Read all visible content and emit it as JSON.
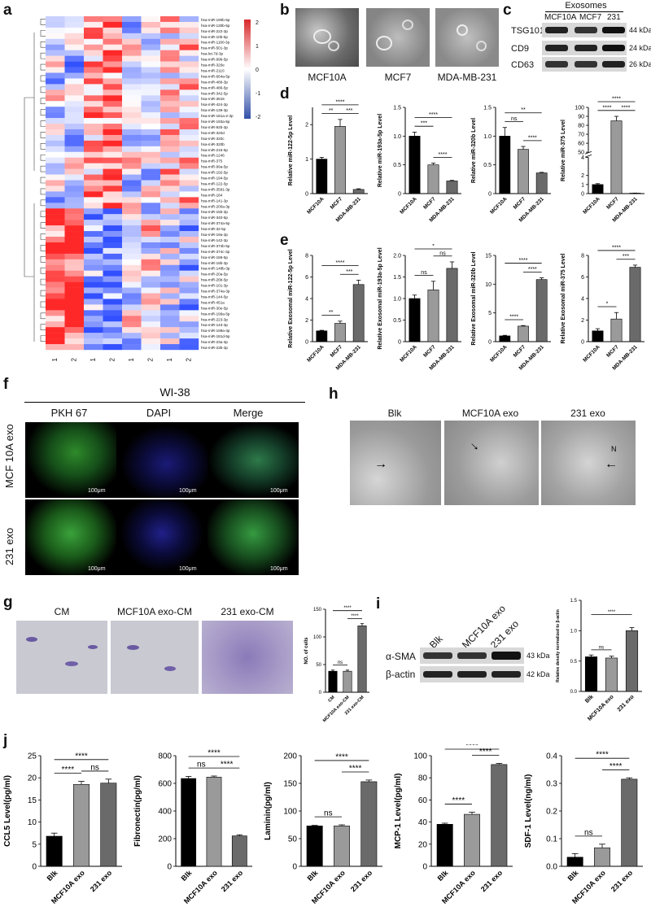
{
  "panels": {
    "a": "a",
    "b": "b",
    "c": "c",
    "d": "d",
    "e": "e",
    "f": "f",
    "g": "g",
    "h": "h",
    "i": "i",
    "j": "j"
  },
  "heatmap": {
    "samples": [
      "NM1",
      "NM2",
      "BM1",
      "BM2",
      "LR1",
      "LR2",
      "LG1",
      "LG2"
    ],
    "genes": [
      "hsa-miR-190b-5p",
      "hsa-miR-130b-5p",
      "hsa-miR-222-3p",
      "hsa-miR-10b-5p",
      "hsa-miR-1180-3p",
      "hsa-miR-501-3p",
      "hsa-let-7d-3p",
      "hsa-miR-99b-5p",
      "hsa-miR-320e",
      "hsa-miR-2110",
      "hsa-miR-664a-5p",
      "hsa-miR-486-3p",
      "hsa-miR-486-5p",
      "hsa-miR-342-5p",
      "hsa-miR-3615",
      "hsa-miR-424-3p",
      "hsa-miR-139-3p",
      "hsa-miR-181a-2-3p",
      "hsa-miR-193a-5p",
      "hsa-miR-92b-3p",
      "hsa-miR-320d",
      "hsa-miR-320c",
      "hsa-miR-320b",
      "hsa-miR-215-5p",
      "hsa-miR-1246",
      "hsa-miR-375",
      "hsa-miR-99a-5p",
      "hsa-miR-192-5p",
      "hsa-miR-194-5p",
      "hsa-miR-122-5p",
      "hsa-miR-3591-3p",
      "hsa-miR-184",
      "hsa-miR-141-3p",
      "hsa-miR-200a-3p",
      "hsa-miR-15b-3p",
      "hsa-miR-340-5p",
      "hsa-miR-374a-5p",
      "hsa-miR-32-5p",
      "hsa-miR-19a-3p",
      "hsa-miR-142-3p",
      "hsa-miR-374b-5p",
      "hsa-miR-374c-3p",
      "hsa-miR-186-5p",
      "hsa-miR-19b-3p",
      "hsa-miR-148b-3p",
      "hsa-miR-20a-5p",
      "hsa-miR-26b-5p",
      "hsa-miR-101-3p",
      "hsa-miR-374a-3p",
      "hsa-miR-144-5p",
      "hsa-miR-451a",
      "hsa-miR-30e-5p",
      "hsa-miR-199a-5p",
      "hsa-miR-223-3p",
      "hsa-miR-143-3p",
      "hsa-miR-199a-3p",
      "hsa-miR-181d-5p",
      "hsa-miR-23a-3p",
      "hsa-miR-23b-3p"
    ],
    "scale": [
      "2",
      "1",
      "0",
      "-1",
      "-2"
    ]
  },
  "panel_b": {
    "labels": [
      "MCF10A",
      "MCF7",
      "MDA-MB-231"
    ]
  },
  "panel_c": {
    "header": "Exosomes",
    "lanes": [
      "MCF10A",
      "MCF7",
      "231"
    ],
    "proteins": [
      "TSG101",
      "CD9",
      "CD63"
    ],
    "sizes": [
      "44 kDa",
      "24 kDa",
      "26 kDa"
    ]
  },
  "panel_f": {
    "cell_line": "WI-38",
    "columns": [
      "PKH 67",
      "DAPI",
      "Merge"
    ],
    "rows": [
      "MCF 10A exo",
      "231 exo"
    ],
    "scale_bar": "100μm"
  },
  "panel_g": {
    "columns": [
      "CM",
      "MCF10A exo-CM",
      "231 exo-CM"
    ]
  },
  "panel_h": {
    "columns": [
      "Blk",
      "MCF10A exo",
      "231 exo"
    ],
    "marker": "N"
  },
  "panel_i": {
    "lanes": [
      "Blk",
      "MCF10A exo",
      "231 exo"
    ],
    "proteins": [
      "α-SMA",
      "β-actin"
    ],
    "sizes": [
      "43 kDa",
      "42 kDa"
    ]
  },
  "chart_data": [
    {
      "id": "d1",
      "type": "bar",
      "categories": [
        "MCF10A",
        "MCF7",
        "MDA-MB-231"
      ],
      "values": [
        1.0,
        1.95,
        0.12
      ],
      "errors": [
        0.05,
        0.2,
        0.02
      ],
      "ylabel": "Relative miR-122-5p Level",
      "ylim": [
        0,
        2.5
      ],
      "yticks": [
        "0",
        "1",
        "2"
      ],
      "sig": [
        {
          "a": 0,
          "b": 1,
          "t": "**"
        },
        {
          "a": 1,
          "b": 2,
          "t": "***"
        },
        {
          "a": 0,
          "b": 2,
          "t": "****"
        }
      ]
    },
    {
      "id": "d2",
      "type": "bar",
      "categories": [
        "MCF10A",
        "MCF7",
        "MDA-MB-231"
      ],
      "values": [
        1.0,
        0.5,
        0.22
      ],
      "errors": [
        0.07,
        0.03,
        0.01
      ],
      "ylabel": "Relative miR-193a-5p Level",
      "ylim": [
        0,
        1.5
      ],
      "yticks": [
        "0",
        "0.5",
        "1.0",
        "1.5"
      ],
      "sig": [
        {
          "a": 0,
          "b": 1,
          "t": "***"
        },
        {
          "a": 1,
          "b": 2,
          "t": "****"
        },
        {
          "a": 0,
          "b": 2,
          "t": "****"
        }
      ]
    },
    {
      "id": "d3",
      "type": "bar",
      "categories": [
        "MCF10A",
        "MCF7",
        "MDA-MB-231"
      ],
      "values": [
        1.0,
        0.77,
        0.36
      ],
      "errors": [
        0.15,
        0.05,
        0.01
      ],
      "ylabel": "Relative miR-320b Level",
      "ylim": [
        0,
        1.5
      ],
      "yticks": [
        "0",
        "0.5",
        "1.0",
        "1.5"
      ],
      "sig": [
        {
          "a": 0,
          "b": 1,
          "t": "ns"
        },
        {
          "a": 1,
          "b": 2,
          "t": "****"
        },
        {
          "a": 0,
          "b": 2,
          "t": "**"
        }
      ]
    },
    {
      "id": "d4",
      "type": "bar",
      "categories": [
        "MCF10A",
        "MCF7",
        "MDA-MB-231"
      ],
      "values": [
        1.0,
        85,
        0.05
      ],
      "errors": [
        0.1,
        5,
        0.01
      ],
      "ylabel": "Relative miR-375 Level",
      "ylim": [
        0,
        100
      ],
      "yticks": [
        "0",
        "1",
        "2",
        "4",
        "50",
        "60",
        "70",
        "80",
        "90",
        "100"
      ],
      "broken_axis": true,
      "sig": [
        {
          "a": 0,
          "b": 1,
          "t": "****"
        },
        {
          "a": 1,
          "b": 2,
          "t": "****"
        },
        {
          "a": 0,
          "b": 2,
          "t": "****"
        }
      ]
    },
    {
      "id": "e1",
      "type": "bar",
      "categories": [
        "MCF10A",
        "MCF7",
        "MDA-MB-231"
      ],
      "values": [
        1.0,
        1.7,
        5.3
      ],
      "errors": [
        0.05,
        0.2,
        0.4
      ],
      "ylabel": "Relative Exosomal miR-122-5p Level",
      "ylim": [
        0,
        8
      ],
      "yticks": [
        "0",
        "2",
        "4",
        "6",
        "8"
      ],
      "sig": [
        {
          "a": 0,
          "b": 1,
          "t": "**"
        },
        {
          "a": 1,
          "b": 2,
          "t": "***"
        },
        {
          "a": 0,
          "b": 2,
          "t": "****"
        }
      ]
    },
    {
      "id": "e2",
      "type": "bar",
      "categories": [
        "MCF10A",
        "MCF7",
        "MDA-MB-231"
      ],
      "values": [
        1.0,
        1.2,
        1.7
      ],
      "errors": [
        0.08,
        0.2,
        0.15
      ],
      "ylabel": "Relative Exosomal miR-193a-5p Level",
      "ylim": [
        0,
        2.0
      ],
      "yticks": [
        "0",
        "0.5",
        "1.0",
        "1.5",
        "2.0"
      ],
      "sig": [
        {
          "a": 0,
          "b": 1,
          "t": "ns"
        },
        {
          "a": 1,
          "b": 2,
          "t": "ns"
        },
        {
          "a": 0,
          "b": 2,
          "t": "*"
        }
      ]
    },
    {
      "id": "e3",
      "type": "bar",
      "categories": [
        "MCF10A",
        "MCF7",
        "MDA-MB-231"
      ],
      "values": [
        1.0,
        2.7,
        10.8
      ],
      "errors": [
        0.1,
        0.1,
        0.3
      ],
      "ylabel": "Relative Exosomal miR-320b Level",
      "ylim": [
        0,
        15
      ],
      "yticks": [
        "0",
        "5",
        "10",
        "15"
      ],
      "sig": [
        {
          "a": 0,
          "b": 1,
          "t": "****"
        },
        {
          "a": 1,
          "b": 2,
          "t": "****"
        },
        {
          "a": 0,
          "b": 2,
          "t": "****"
        }
      ]
    },
    {
      "id": "e4",
      "type": "bar",
      "categories": [
        "MCF10A",
        "MCF7",
        "MDA-MB-231"
      ],
      "values": [
        1.0,
        2.1,
        6.9
      ],
      "errors": [
        0.2,
        0.6,
        0.2
      ],
      "ylabel": "Relative Exosomal miR-375 Level",
      "ylim": [
        0,
        8
      ],
      "yticks": [
        "0",
        "2",
        "4",
        "6",
        "8"
      ],
      "sig": [
        {
          "a": 0,
          "b": 1,
          "t": "*"
        },
        {
          "a": 1,
          "b": 2,
          "t": "***"
        },
        {
          "a": 0,
          "b": 2,
          "t": "****"
        }
      ]
    },
    {
      "id": "g",
      "type": "bar",
      "categories": [
        "CM",
        "MCF10A exo-CM",
        "231 exo-CM"
      ],
      "values": [
        38,
        38,
        120
      ],
      "errors": [
        2,
        2,
        4
      ],
      "ylabel": "NO. of cells",
      "ylim": [
        0,
        150
      ],
      "yticks": [
        "0",
        "50",
        "100",
        "150"
      ],
      "sig": [
        {
          "a": 0,
          "b": 1,
          "t": "ns"
        },
        {
          "a": 1,
          "b": 2,
          "t": "****"
        },
        {
          "a": 0,
          "b": 2,
          "t": "****"
        }
      ]
    },
    {
      "id": "i",
      "type": "bar",
      "categories": [
        "Blk",
        "MCF10A exo",
        "231 exo"
      ],
      "values": [
        0.57,
        0.55,
        1.0
      ],
      "errors": [
        0.03,
        0.03,
        0.05
      ],
      "ylabel": "Relative density normalized to β-actin",
      "ylim": [
        0,
        1.5
      ],
      "yticks": [
        "0.0",
        "0.5",
        "1.0",
        "1.5"
      ],
      "sig": [
        {
          "a": 0,
          "b": 1,
          "t": "ns"
        },
        {
          "a": 0,
          "b": 2,
          "t": "****"
        }
      ]
    },
    {
      "id": "j1",
      "type": "bar",
      "categories": [
        "Blk",
        "MCF10A exo",
        "231 exo"
      ],
      "values": [
        6.8,
        18.5,
        18.8
      ],
      "errors": [
        0.7,
        0.7,
        0.9
      ],
      "ylabel": "CCL5 Level(pg/ml)",
      "ylim": [
        0,
        25
      ],
      "yticks": [
        "0",
        "5",
        "10",
        "15",
        "20",
        "25"
      ],
      "sig": [
        {
          "a": 0,
          "b": 1,
          "t": "****"
        },
        {
          "a": 1,
          "b": 2,
          "t": "ns"
        },
        {
          "a": 0,
          "b": 2,
          "t": "****"
        }
      ]
    },
    {
      "id": "j2",
      "type": "bar",
      "categories": [
        "Blk",
        "MCF10A exo",
        "231 exo"
      ],
      "values": [
        635,
        645,
        220
      ],
      "errors": [
        15,
        8,
        8
      ],
      "ylabel": "Fibronectin(pg/ml)",
      "ylim": [
        0,
        800
      ],
      "yticks": [
        "0",
        "200",
        "400",
        "600",
        "800"
      ],
      "sig": [
        {
          "a": 0,
          "b": 1,
          "t": "ns"
        },
        {
          "a": 1,
          "b": 2,
          "t": "****"
        },
        {
          "a": 0,
          "b": 2,
          "t": "****"
        }
      ]
    },
    {
      "id": "j3",
      "type": "bar",
      "categories": [
        "Blk",
        "MCF10A exo",
        "231 exo"
      ],
      "values": [
        73,
        73,
        153
      ],
      "errors": [
        1,
        2,
        3
      ],
      "ylabel": "Laminin(pg/ml)",
      "ylim": [
        0,
        200
      ],
      "yticks": [
        "0",
        "50",
        "100",
        "150",
        "200"
      ],
      "sig": [
        {
          "a": 0,
          "b": 1,
          "t": "ns"
        },
        {
          "a": 1,
          "b": 2,
          "t": "****"
        },
        {
          "a": 0,
          "b": 2,
          "t": "****"
        }
      ]
    },
    {
      "id": "j4",
      "type": "bar",
      "categories": [
        "Blk",
        "MCF10A exo",
        "231 exo"
      ],
      "values": [
        38,
        47,
        92
      ],
      "errors": [
        1,
        2,
        1
      ],
      "ylabel": "MCP-1 Level(pg/ml)",
      "ylim": [
        0,
        100
      ],
      "yticks": [
        "0",
        "20",
        "40",
        "60",
        "80",
        "100"
      ],
      "sig": [
        {
          "a": 0,
          "b": 1,
          "t": "****"
        },
        {
          "a": 1,
          "b": 2,
          "t": "****"
        },
        {
          "a": 0,
          "b": 2,
          "t": "****"
        }
      ]
    },
    {
      "id": "j5",
      "type": "bar",
      "categories": [
        "Blk",
        "MCF10A exo",
        "231 exo"
      ],
      "values": [
        0.033,
        0.067,
        0.315
      ],
      "errors": [
        0.013,
        0.013,
        0.005
      ],
      "ylabel": "SDF-1 Level(ng/ml)",
      "ylim": [
        0,
        0.4
      ],
      "yticks": [
        "0.0",
        "0.1",
        "0.2",
        "0.3",
        "0.4"
      ],
      "sig": [
        {
          "a": 0,
          "b": 1,
          "t": "ns"
        },
        {
          "a": 1,
          "b": 2,
          "t": "****"
        },
        {
          "a": 0,
          "b": 2,
          "t": "****"
        }
      ]
    }
  ]
}
